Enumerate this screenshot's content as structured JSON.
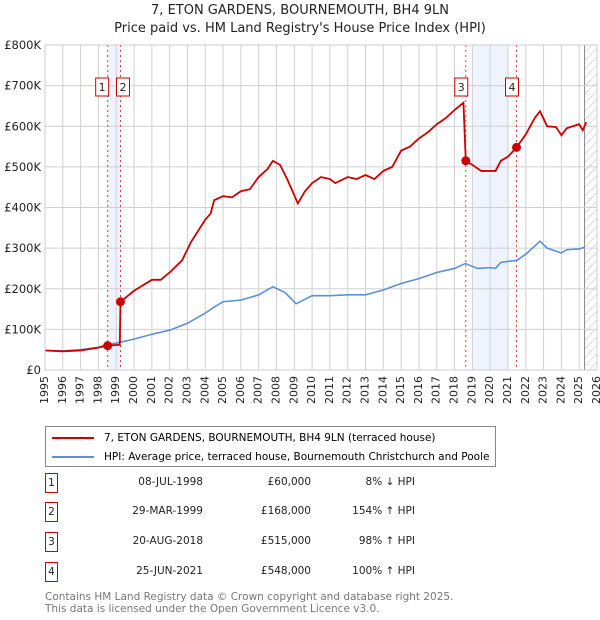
{
  "title": "7, ETON GARDENS, BOURNEMOUTH, BH4 9LN",
  "subtitle": "Price paid vs. HM Land Registry's House Price Index (HPI)",
  "colors": {
    "price": "#cc0000",
    "hpi": "#5b8fd6",
    "shade": "#eef3fd"
  },
  "chart_data": {
    "type": "line",
    "title": "7, ETON GARDENS, BOURNEMOUTH, BH4 9LN",
    "xlabel": "",
    "ylabel": "",
    "xlim": [
      1995,
      2026
    ],
    "ylim": [
      0,
      800000
    ],
    "x_ticks": [
      "1995",
      "1996",
      "1997",
      "1998",
      "1999",
      "2000",
      "2001",
      "2002",
      "2003",
      "2004",
      "2005",
      "2006",
      "2007",
      "2008",
      "2009",
      "2010",
      "2011",
      "2012",
      "2013",
      "2014",
      "2015",
      "2016",
      "2017",
      "2018",
      "2019",
      "2020",
      "2021",
      "2022",
      "2023",
      "2024",
      "2025",
      "2026"
    ],
    "y_ticks": [
      {
        "v": 0,
        "label": "£0"
      },
      {
        "v": 100000,
        "label": "£100K"
      },
      {
        "v": 200000,
        "label": "£200K"
      },
      {
        "v": 300000,
        "label": "£300K"
      },
      {
        "v": 400000,
        "label": "£400K"
      },
      {
        "v": 500000,
        "label": "£500K"
      },
      {
        "v": 600000,
        "label": "£600K"
      },
      {
        "v": 700000,
        "label": "£700K"
      },
      {
        "v": 800000,
        "label": "£800K"
      }
    ],
    "grid": true,
    "shaded_ranges": [
      [
        1998.52,
        1999.24
      ],
      [
        2019.0,
        2021.0
      ]
    ],
    "future_hatch_from": 2025.3,
    "series": [
      {
        "name": "7, ETON GARDENS, BOURNEMOUTH, BH4 9LN (terraced house)",
        "x": [
          1995,
          1996,
          1997,
          1998,
          1998.52,
          1999.2,
          1999.24,
          2000,
          2001,
          2001.5,
          2002,
          2002.7,
          2003.2,
          2004,
          2004.3,
          2004.5,
          2005,
          2005.5,
          2006,
          2006.5,
          2007,
          2007.5,
          2007.8,
          2008.2,
          2008.6,
          2009,
          2009.2,
          2009.6,
          2010,
          2010.5,
          2011,
          2011.3,
          2012,
          2012.5,
          2013,
          2013.5,
          2014,
          2014.5,
          2015,
          2015.5,
          2016,
          2016.5,
          2017,
          2017.5,
          2018,
          2018.5,
          2018.63,
          2019,
          2019.5,
          2020,
          2020.3,
          2020.6,
          2021,
          2021.48,
          2022,
          2022.5,
          2022.8,
          2023.2,
          2023.7,
          2024,
          2024.3,
          2025,
          2025.2,
          2025.4
        ],
        "values": [
          48000,
          46000,
          48000,
          55000,
          60000,
          62000,
          168000,
          195000,
          222000,
          222000,
          240000,
          270000,
          315000,
          370000,
          385000,
          418000,
          428000,
          425000,
          440000,
          445000,
          475000,
          495000,
          515000,
          505000,
          470000,
          430000,
          410000,
          440000,
          460000,
          475000,
          470000,
          460000,
          475000,
          470000,
          480000,
          470000,
          490000,
          500000,
          540000,
          550000,
          570000,
          585000,
          605000,
          620000,
          640000,
          658000,
          515000,
          505000,
          490000,
          490000,
          490000,
          515000,
          525000,
          548000,
          580000,
          620000,
          637000,
          600000,
          598000,
          578000,
          595000,
          605000,
          590000,
          610000
        ]
      },
      {
        "name": "HPI: Average price, terraced house, Bournemouth Christchurch and Poole",
        "x": [
          1995,
          1996,
          1997,
          1998,
          1998.5,
          1999,
          2000,
          2001,
          2002,
          2003,
          2004,
          2004.5,
          2005,
          2006,
          2007,
          2007.8,
          2008.5,
          2009.1,
          2010,
          2011,
          2012,
          2013,
          2014,
          2015,
          2016,
          2017,
          2018,
          2018.6,
          2019.3,
          2020,
          2020.3,
          2020.6,
          2021.5,
          2022,
          2022.8,
          2023.2,
          2024,
          2024.3,
          2025,
          2025.3
        ],
        "values": [
          48000,
          47000,
          50000,
          56000,
          63000,
          66000,
          76000,
          88000,
          98000,
          115000,
          140000,
          155000,
          168000,
          172000,
          185000,
          205000,
          190000,
          163000,
          183000,
          183000,
          185000,
          185000,
          197000,
          213000,
          225000,
          240000,
          250000,
          262000,
          250000,
          252000,
          250000,
          265000,
          270000,
          285000,
          317000,
          300000,
          288000,
          296000,
          298000,
          302000
        ]
      }
    ],
    "sales": [
      {
        "id": "1",
        "x": 1998.52,
        "value": 60000
      },
      {
        "id": "2",
        "x": 1999.24,
        "value": 168000
      },
      {
        "id": "3",
        "x": 2018.63,
        "value": 515000
      },
      {
        "id": "4",
        "x": 2021.48,
        "value": 548000
      }
    ]
  },
  "legend": [
    "7, ETON GARDENS, BOURNEMOUTH, BH4 9LN (terraced house)",
    "HPI: Average price, terraced house, Bournemouth Christchurch and Poole"
  ],
  "transactions": [
    {
      "id": "1",
      "date": "08-JUL-1998",
      "price": "£60,000",
      "hpi": "8% ↓ HPI"
    },
    {
      "id": "2",
      "date": "29-MAR-1999",
      "price": "£168,000",
      "hpi": "154% ↑ HPI"
    },
    {
      "id": "3",
      "date": "20-AUG-2018",
      "price": "£515,000",
      "hpi": "98% ↑ HPI"
    },
    {
      "id": "4",
      "date": "25-JUN-2021",
      "price": "£548,000",
      "hpi": "100% ↑ HPI"
    }
  ],
  "footer": {
    "line1": "Contains HM Land Registry data © Crown copyright and database right 2025.",
    "line2": "This data is licensed under the Open Government Licence v3.0."
  }
}
